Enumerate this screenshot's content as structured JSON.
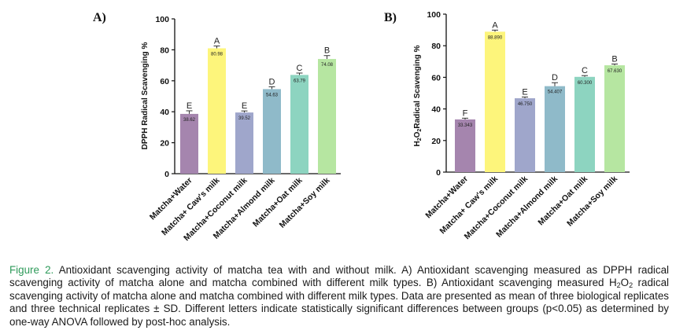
{
  "chart_data": [
    {
      "type": "bar",
      "panel": "A)",
      "ylabel": "DPPH Radical Scavenging %",
      "ylim": [
        0,
        100
      ],
      "yticks": [
        0,
        20,
        40,
        60,
        80,
        100
      ],
      "categories": [
        "Matcha+Water",
        "Matcha+ Caw's milk",
        "Matcha+Coconut milk",
        "Matcha+Almond milk",
        "Matcha+Oat milk",
        "Matcha+Soy milk"
      ],
      "values": [
        38.62,
        80.98,
        39.52,
        54.63,
        63.79,
        74.08
      ],
      "errors": [
        2.0,
        1.5,
        1.0,
        1.5,
        1.2,
        2.2
      ],
      "value_labels": [
        "38.62",
        "80.98",
        "39.52",
        "54.63",
        "63.79",
        "74.08"
      ],
      "letters": [
        "E",
        "A",
        "E",
        "D",
        "C",
        "B"
      ]
    },
    {
      "type": "bar",
      "panel": "B)",
      "ylabel": "H₂O₂Radical Scavenging %",
      "ylim": [
        0,
        100
      ],
      "yticks": [
        0,
        20,
        40,
        60,
        80,
        100
      ],
      "categories": [
        "Matcha+Water",
        "Matcha+ Caw's milk",
        "Matcha+Coconut milk",
        "Matcha+Almond milk",
        "Matcha+Oat milk",
        "Matcha+Soy milk"
      ],
      "values": [
        33.343,
        88.89,
        46.75,
        54.407,
        60.3,
        67.63
      ],
      "errors": [
        0.8,
        1.0,
        0.8,
        2.2,
        0.8,
        0.8
      ],
      "value_labels": [
        "33.343",
        "88.890",
        "46.750",
        "54.407",
        "60.300",
        "67.630"
      ],
      "letters": [
        "F",
        "A",
        "E",
        "D",
        "C",
        "B"
      ]
    }
  ],
  "colors": {
    "bars": [
      "#a585ae",
      "#fdf57b",
      "#9fa6cb",
      "#8fbac9",
      "#8dd4c0",
      "#b6e6a1"
    ],
    "axis": "#111111",
    "caption_label": "#2e9a5a"
  },
  "caption": {
    "label": "Figure 2.",
    "part1": "Antioxidant scavenging activity of matcha tea with and without milk. A) Antioxidant scavenging measured as DPPH radical scavenging activity of matcha alone and matcha combined with different milk types. B) Antioxidant scavenging measured H",
    "sub1": "2",
    "mid": "O",
    "sub2": "2",
    "part2": " radical scavenging activity of matcha alone and matcha combined with different milk types. Data are presented as mean of three biological replicates and three technical replicates ± SD. Different letters indicate statistically significant differences between groups (p<0.05) as determined by one-way ANOVA followed by post-hoc analysis."
  }
}
